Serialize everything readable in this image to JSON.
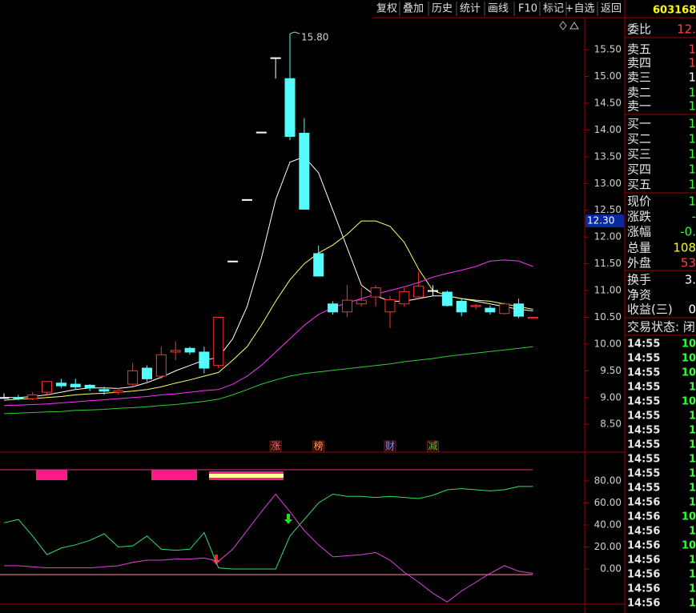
{
  "toolbar": [
    "复权",
    "叠加",
    "历史",
    "统计",
    "画线",
    "F10",
    "标记",
    "+自选",
    "返回"
  ],
  "quote_panel": {
    "code": "603168",
    "rows": [
      {
        "label": "委比",
        "value": "12.",
        "color": "#ff4040"
      },
      {
        "label": "卖五",
        "value": "1",
        "color": "#ff4040"
      },
      {
        "label": "卖四",
        "value": "1",
        "color": "#ff4040"
      },
      {
        "label": "卖三",
        "value": "1",
        "color": "#ffffff"
      },
      {
        "label": "卖二",
        "value": "1",
        "color": "#33ff33"
      },
      {
        "label": "卖一",
        "value": "1",
        "color": "#33ff33"
      },
      {
        "label": "买一",
        "value": "1",
        "color": "#33ff33"
      },
      {
        "label": "买二",
        "value": "1",
        "color": "#33ff33"
      },
      {
        "label": "买三",
        "value": "1",
        "color": "#33ff33"
      },
      {
        "label": "买四",
        "value": "1",
        "color": "#33ff33"
      },
      {
        "label": "买五",
        "value": "1",
        "color": "#33ff33"
      },
      {
        "label": "现价",
        "value": "1",
        "color": "#33ff33"
      },
      {
        "label": "涨跌",
        "value": "-",
        "color": "#33ff33"
      },
      {
        "label": "涨幅",
        "value": "-0.",
        "color": "#33ff33"
      },
      {
        "label": "总量",
        "value": "108",
        "color": "#ffff00"
      },
      {
        "label": "外盘",
        "value": "53",
        "color": "#ff4040"
      },
      {
        "label": "换手",
        "value": "3.",
        "color": "#ffffff"
      },
      {
        "label": "净资"
      },
      {
        "label": "收益(三)",
        "value": "0",
        "color": "#ffffff"
      }
    ],
    "status": "交易状态: 闭",
    "trades": [
      {
        "time": "14:55",
        "value": "10"
      },
      {
        "time": "14:55",
        "value": "10"
      },
      {
        "time": "14:55",
        "value": "10"
      },
      {
        "time": "14:55",
        "value": "1"
      },
      {
        "time": "14:55",
        "value": "10"
      },
      {
        "time": "14:55",
        "value": "1"
      },
      {
        "time": "14:55",
        "value": "1"
      },
      {
        "time": "14:55",
        "value": "1"
      },
      {
        "time": "14:55",
        "value": "1"
      },
      {
        "time": "14:55",
        "value": "1"
      },
      {
        "time": "14:55",
        "value": "1"
      },
      {
        "time": "14:56",
        "value": "1"
      },
      {
        "time": "14:56",
        "value": "10"
      },
      {
        "time": "14:56",
        "value": "1"
      },
      {
        "time": "14:56",
        "value": "10"
      },
      {
        "time": "14:56",
        "value": "1"
      },
      {
        "time": "14:56",
        "value": "1"
      },
      {
        "time": "14:56",
        "value": "1"
      },
      {
        "time": "14:56",
        "value": "1"
      }
    ]
  },
  "chart_data": [
    {
      "type": "candlestick",
      "up_color": "#ff3232",
      "down_color": "#54fcfc",
      "flat_color": "#ffffff",
      "open": [
        9.0,
        9.0,
        8.98,
        9.1,
        9.27,
        9.25,
        9.23,
        9.15,
        9.1,
        9.25,
        9.55,
        9.4,
        9.85,
        9.92,
        9.85,
        9.6,
        11.55,
        12.7,
        13.96,
        15.35,
        14.96,
        13.94,
        11.69,
        10.75,
        10.6,
        10.75,
        10.88,
        10.6,
        10.75,
        10.88,
        11.0,
        10.97,
        10.8,
        10.7,
        10.67,
        10.57,
        10.75,
        10.48
      ],
      "high": [
        9.08,
        9.05,
        9.1,
        9.3,
        9.35,
        9.35,
        9.25,
        9.2,
        9.18,
        9.65,
        9.6,
        9.95,
        10.05,
        9.95,
        9.95,
        10.5,
        11.55,
        12.7,
        13.96,
        15.35,
        15.8,
        14.22,
        11.84,
        10.8,
        11.1,
        11.05,
        11.1,
        10.9,
        11.05,
        11.35,
        11.1,
        11.0,
        10.85,
        10.75,
        10.72,
        10.78,
        10.85,
        10.5
      ],
      "low": [
        8.98,
        8.95,
        8.95,
        9.05,
        9.18,
        9.15,
        9.12,
        9.05,
        9.05,
        9.2,
        9.3,
        9.35,
        9.7,
        9.8,
        9.45,
        9.55,
        11.55,
        12.7,
        13.96,
        14.96,
        13.81,
        12.52,
        11.27,
        10.55,
        10.5,
        10.7,
        10.7,
        10.3,
        10.7,
        10.85,
        10.9,
        10.7,
        10.52,
        10.65,
        10.55,
        10.55,
        10.48,
        10.47
      ],
      "close": [
        9.0,
        8.98,
        9.05,
        9.3,
        9.22,
        9.2,
        9.18,
        9.12,
        9.13,
        9.5,
        9.35,
        9.8,
        9.88,
        9.85,
        9.55,
        10.5,
        11.55,
        12.7,
        13.96,
        15.35,
        13.88,
        12.52,
        11.27,
        10.6,
        10.82,
        10.82,
        11.05,
        10.83,
        10.98,
        11.08,
        11.0,
        10.72,
        10.6,
        10.72,
        10.6,
        10.75,
        10.52,
        10.5
      ],
      "series": [
        {
          "color": "#ffffff",
          "values": [
            9.0,
            9.0,
            9.02,
            9.05,
            9.1,
            9.15,
            9.18,
            9.18,
            9.17,
            9.2,
            9.28,
            9.38,
            9.5,
            9.6,
            9.7,
            9.75,
            10.1,
            10.7,
            11.6,
            12.7,
            13.4,
            13.5,
            13.2,
            12.5,
            11.8,
            11.1,
            10.9,
            10.8,
            10.8,
            10.85,
            10.9,
            10.9,
            10.85,
            10.8,
            10.75,
            10.7,
            10.65,
            10.62
          ]
        },
        {
          "color": "#ffff66",
          "values": [
            8.95,
            8.97,
            8.98,
            9.0,
            9.02,
            9.05,
            9.07,
            9.08,
            9.1,
            9.12,
            9.15,
            9.2,
            9.27,
            9.33,
            9.4,
            9.47,
            9.7,
            9.95,
            10.35,
            10.8,
            11.2,
            11.5,
            11.7,
            11.85,
            12.05,
            12.3,
            12.3,
            12.2,
            11.9,
            11.4,
            11.0,
            10.9,
            10.85,
            10.82,
            10.8,
            10.75,
            10.7,
            10.65
          ]
        },
        {
          "color": "#ff33ff",
          "values": [
            8.85,
            8.86,
            8.87,
            8.88,
            8.9,
            8.92,
            8.94,
            8.96,
            8.98,
            9.0,
            9.02,
            9.05,
            9.07,
            9.1,
            9.13,
            9.15,
            9.25,
            9.4,
            9.6,
            9.85,
            10.1,
            10.35,
            10.55,
            10.68,
            10.77,
            10.85,
            10.93,
            11.0,
            11.07,
            11.15,
            11.25,
            11.32,
            11.38,
            11.45,
            11.55,
            11.57,
            11.55,
            11.45
          ]
        },
        {
          "color": "#33cc33",
          "values": [
            8.7,
            8.71,
            8.72,
            8.73,
            8.74,
            8.76,
            8.77,
            8.78,
            8.8,
            8.81,
            8.83,
            8.85,
            8.87,
            8.9,
            8.93,
            8.97,
            9.05,
            9.15,
            9.25,
            9.33,
            9.4,
            9.45,
            9.48,
            9.51,
            9.54,
            9.57,
            9.6,
            9.63,
            9.67,
            9.7,
            9.73,
            9.77,
            9.8,
            9.83,
            9.86,
            9.89,
            9.92,
            9.95
          ]
        }
      ],
      "ylim": [
        7.98,
        16.1
      ],
      "yticks": [
        {
          "value": 8.5,
          "label": "8.50"
        },
        {
          "value": 9,
          "label": "9.00"
        },
        {
          "value": 9.5,
          "label": "9.50"
        },
        {
          "value": 10,
          "label": "10.00"
        },
        {
          "value": 10.5,
          "label": "10.50"
        },
        {
          "value": 11,
          "label": "11.00"
        },
        {
          "value": 11.5,
          "label": "11.50"
        },
        {
          "value": 12,
          "label": "12.00"
        },
        {
          "value": 12.5,
          "label": "12.50"
        },
        {
          "value": 13,
          "label": "13.00"
        },
        {
          "value": 13.5,
          "label": "13.50"
        },
        {
          "value": 14,
          "label": "14.00"
        },
        {
          "value": 14.5,
          "label": "14.50"
        },
        {
          "value": 15,
          "label": "15.00"
        },
        {
          "value": 15.5,
          "label": "15.50"
        }
      ],
      "high_label": {
        "value": 15.8,
        "label": "15.80"
      },
      "price_marker": {
        "value": 12.3,
        "label": "12.30"
      },
      "events": [
        {
          "index": 19,
          "label": "涨",
          "color": "#ff6666"
        },
        {
          "index": 22,
          "label": "榜",
          "color": "#ffaa44"
        },
        {
          "index": 27,
          "label": "财",
          "color": "#6699ff"
        },
        {
          "index": 30,
          "label": "减",
          "color": "#33cc33"
        }
      ]
    },
    {
      "type": "line",
      "series": [
        {
          "color": "#33dd66",
          "values": [
            42,
            45,
            30,
            13,
            19,
            22,
            26,
            32,
            20,
            21,
            30,
            18,
            17,
            18,
            33,
            1,
            0,
            0,
            0,
            0,
            30,
            45,
            60,
            68,
            66,
            66,
            65,
            66,
            65,
            64,
            67,
            72,
            73,
            72,
            71,
            72,
            75,
            75
          ]
        },
        {
          "color": "#dd44dd",
          "values": [
            3,
            3,
            2,
            1,
            1,
            1,
            1,
            2,
            3,
            6,
            8,
            8,
            9,
            9,
            10,
            7,
            18,
            35,
            52,
            68,
            52,
            35,
            22,
            11,
            12,
            13,
            15,
            8,
            -3,
            -12,
            -22,
            -30,
            -20,
            -12,
            -4,
            3,
            -2,
            -4
          ]
        }
      ],
      "ylim": [
        -32,
        104
      ],
      "yticks": [
        {
          "value": 0,
          "label": "0.00"
        },
        {
          "value": 20,
          "label": "20.00"
        },
        {
          "value": 40,
          "label": "40.00"
        },
        {
          "value": 60,
          "label": "60.00"
        },
        {
          "value": 80,
          "label": "80.00"
        }
      ]
    }
  ]
}
